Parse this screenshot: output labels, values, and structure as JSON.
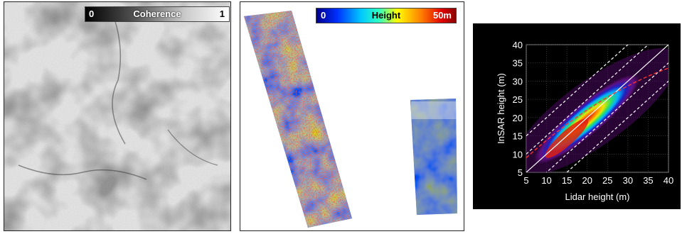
{
  "coherence_colorbar": {
    "min": "0",
    "label": "Coherence",
    "max": "1"
  },
  "height_colorbar": {
    "min": "0",
    "label": "Height",
    "max": "50m"
  },
  "scatter_plot": {
    "xlabel": "Lidar height (m)",
    "ylabel": "InSAR height (m)"
  },
  "chart_data": {
    "type": "heatmap",
    "xlabel": "Lidar height (m)",
    "ylabel": "InSAR height (m)",
    "xlim": [
      5,
      40
    ],
    "ylim": [
      5,
      40
    ],
    "x_ticks": [
      5,
      10,
      15,
      20,
      25,
      30,
      35,
      40
    ],
    "y_ticks": [
      5,
      10,
      15,
      20,
      25,
      30,
      35,
      40
    ],
    "grid": true,
    "colors": {
      "background": "#000000",
      "reference_line": "#ffffff",
      "fit_line": "#ff3030"
    }
  }
}
